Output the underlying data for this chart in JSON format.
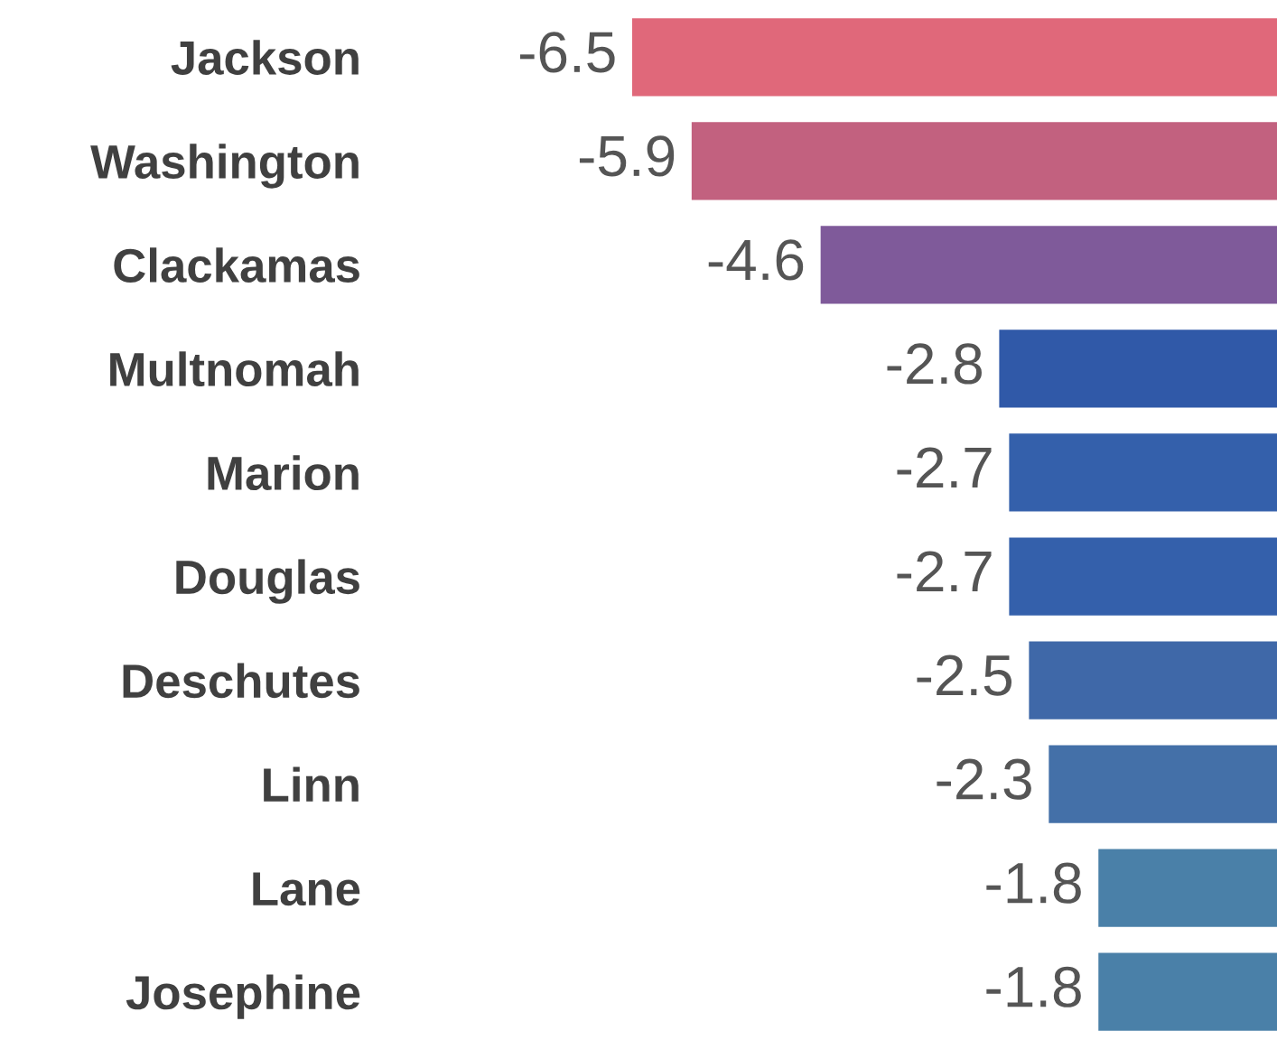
{
  "chart_data": {
    "type": "bar",
    "orientation": "horizontal",
    "data_labels": true,
    "grid": false,
    "legend": false,
    "tick_labels": "y",
    "categories": [
      "Jackson",
      "Washington",
      "Clackamas",
      "Multnomah",
      "Marion",
      "Douglas",
      "Deschutes",
      "Linn",
      "Lane",
      "Josephine"
    ],
    "values": [
      -6.5,
      -5.9,
      -4.6,
      -2.8,
      -2.7,
      -2.7,
      -2.5,
      -2.3,
      -1.8,
      -1.8
    ],
    "colors": [
      "#e0687a",
      "#c2617f",
      "#7f5a9a",
      "#3059a8",
      "#3460ab",
      "#3460ab",
      "#3f68a8",
      "#4470a8",
      "#4a80a8",
      "#4a80a8"
    ]
  }
}
